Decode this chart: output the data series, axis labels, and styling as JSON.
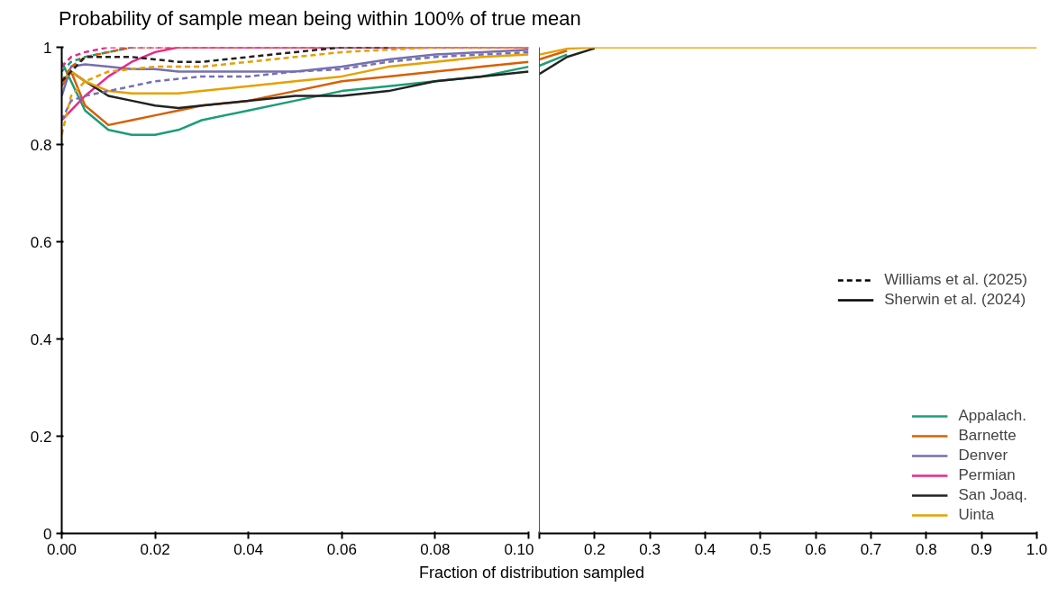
{
  "chart_data": [
    {
      "type": "line",
      "title": "Probability of sample mean being within 100% of true mean",
      "xlabel": "Fraction of distribution sampled",
      "xlim": [
        0,
        0.1
      ],
      "ylim": [
        0,
        1
      ],
      "xticks": [
        {
          "value": 0,
          "label": "0.00"
        },
        {
          "value": 0.02,
          "label": "0.02"
        },
        {
          "value": 0.04,
          "label": "0.04"
        },
        {
          "value": 0.06,
          "label": "0.06"
        },
        {
          "value": 0.08,
          "label": "0.08"
        },
        {
          "value": 0.1,
          "label": "0.10"
        }
      ],
      "yticks": [
        0,
        0.2,
        0.4,
        0.6,
        0.8,
        1
      ],
      "grid": false,
      "legend": false,
      "x": [
        0,
        0.002,
        0.005,
        0.01,
        0.015,
        0.02,
        0.025,
        0.03,
        0.04,
        0.05,
        0.06,
        0.07,
        0.08,
        0.09,
        0.1
      ],
      "series": [
        {
          "color": "#1b9e77",
          "line_style": "solid",
          "values": [
            0.97,
            0.93,
            0.87,
            0.83,
            0.82,
            0.82,
            0.83,
            0.85,
            0.87,
            0.89,
            0.91,
            0.92,
            0.93,
            0.94,
            0.96
          ]
        },
        {
          "color": "#d95f02",
          "line_style": "solid",
          "values": [
            0.92,
            0.95,
            0.88,
            0.84,
            0.85,
            0.86,
            0.87,
            0.88,
            0.89,
            0.91,
            0.93,
            0.94,
            0.95,
            0.96,
            0.97
          ]
        },
        {
          "color": "#7570b3",
          "line_style": "solid",
          "values": [
            0.9,
            0.96,
            0.965,
            0.96,
            0.955,
            0.955,
            0.95,
            0.95,
            0.95,
            0.95,
            0.96,
            0.975,
            0.985,
            0.99,
            0.995
          ]
        },
        {
          "color": "#e7298a",
          "line_style": "solid",
          "values": [
            0.85,
            0.87,
            0.9,
            0.94,
            0.97,
            0.99,
            1,
            1,
            1,
            1,
            1,
            1,
            1,
            1,
            1
          ]
        },
        {
          "color": "#222222",
          "line_style": "solid",
          "values": [
            0.93,
            0.95,
            0.93,
            0.9,
            0.89,
            0.88,
            0.875,
            0.88,
            0.89,
            0.9,
            0.9,
            0.91,
            0.93,
            0.94,
            0.95
          ]
        },
        {
          "color": "#e6a000",
          "line_style": "solid",
          "values": [
            0.93,
            0.95,
            0.93,
            0.91,
            0.905,
            0.905,
            0.905,
            0.91,
            0.92,
            0.93,
            0.94,
            0.96,
            0.97,
            0.98,
            0.985
          ]
        },
        {
          "color": "#1b9e77",
          "line_style": "dashed",
          "values": [
            0.95,
            0.97,
            0.98,
            0.99,
            1,
            null,
            null,
            null,
            null,
            null,
            null,
            null,
            null,
            null,
            null
          ]
        },
        {
          "color": "#d95f02",
          "line_style": "dashed",
          "values": [
            0.93,
            0.96,
            0.98,
            0.99,
            1,
            1,
            1,
            1,
            1,
            1,
            1,
            1,
            1,
            1,
            1
          ]
        },
        {
          "color": "#7570b3",
          "line_style": "dashed",
          "values": [
            0.85,
            0.89,
            0.9,
            0.91,
            0.92,
            0.93,
            0.935,
            0.94,
            0.94,
            0.95,
            0.955,
            0.97,
            0.98,
            0.985,
            0.99
          ]
        },
        {
          "color": "#e7298a",
          "line_style": "dashed",
          "values": [
            0.96,
            0.98,
            0.99,
            1,
            1,
            1,
            1,
            1,
            1,
            1,
            1,
            1,
            1,
            1,
            1
          ]
        },
        {
          "color": "#222222",
          "line_style": "dashed",
          "values": [
            0.93,
            0.95,
            0.98,
            0.98,
            0.98,
            0.975,
            0.97,
            0.97,
            0.98,
            0.99,
            1,
            1,
            null,
            null,
            null
          ]
        },
        {
          "color": "#e6a000",
          "line_style": "dashed",
          "values": [
            0.82,
            0.9,
            0.93,
            0.95,
            0.955,
            0.96,
            0.96,
            0.96,
            0.97,
            0.98,
            0.99,
            0.995,
            1,
            1,
            1
          ]
        }
      ]
    },
    {
      "type": "line",
      "xlim": [
        0.1,
        1
      ],
      "ylim": [
        0,
        1
      ],
      "annotations": [
        "Williams et al. (2025)",
        "Sherwin et al. (2024)"
      ],
      "tick_labels": "x",
      "grid": false,
      "legend": "bottom right",
      "xticks": [
        {
          "value": 0.1,
          "label": null
        },
        0.2,
        0.3,
        0.4,
        0.5,
        0.6,
        0.7,
        0.8,
        0.9,
        {
          "value": 1,
          "label": "1.0"
        }
      ],
      "yticks": [
        0,
        0.2,
        0.4,
        0.6,
        0.8,
        1
      ],
      "x": [
        0.1,
        0.15,
        0.2,
        0.3,
        1
      ],
      "series": [
        {
          "name": "Appalach.",
          "color": "#1b9e77",
          "line_style": "solid",
          "values": [
            0.962,
            0.985,
            null,
            null,
            null
          ]
        },
        {
          "name": "Barnette",
          "color": "#d95f02",
          "line_style": "solid",
          "values": [
            0.975,
            0.993,
            null,
            null,
            null
          ]
        },
        {
          "name": "Denver",
          "color": "#7570b3",
          "line_style": "solid",
          "values": [
            null,
            null,
            null,
            null,
            null
          ]
        },
        {
          "name": "Permian",
          "color": "#e7298a",
          "line_style": "solid",
          "values": [
            null,
            null,
            null,
            null,
            null
          ]
        },
        {
          "name": "San Joaq.",
          "color": "#222222",
          "line_style": "solid",
          "values": [
            0.945,
            0.98,
            0.998,
            null,
            null
          ]
        },
        {
          "name": "Uinta",
          "color": "#e6a000",
          "line_style": "solid",
          "values": [
            0.985,
            0.997,
            1,
            1,
            1
          ]
        }
      ]
    }
  ]
}
